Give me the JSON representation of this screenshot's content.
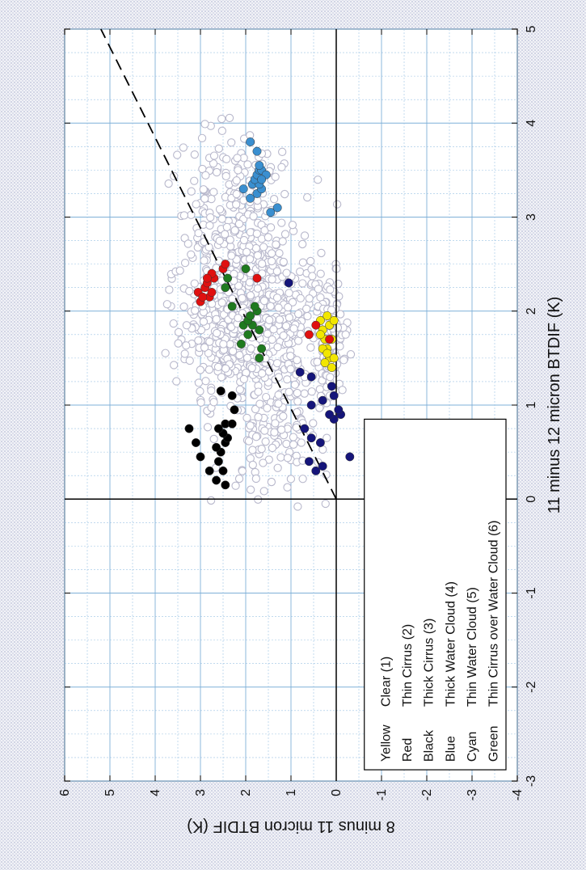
{
  "chart_data": {
    "type": "scatter",
    "orientation": "rotated-90-ccw",
    "xlabel": "11 minus 12 micron BTDIF (K)",
    "ylabel": "8 minus 11 micron BTDIF (K)",
    "xlim": [
      -3,
      5
    ],
    "ylim": [
      -4,
      6
    ],
    "x_ticks": [
      "-3",
      "-2",
      "-1",
      "0",
      "1",
      "2",
      "3",
      "4",
      "5"
    ],
    "y_ticks": [
      "-4",
      "-3",
      "-2",
      "-1",
      "0",
      "1",
      "2",
      "3",
      "4",
      "5",
      "6"
    ],
    "grid": true,
    "reference_line": {
      "style": "dashed",
      "from": [
        0,
        0
      ],
      "to": [
        5,
        5.2
      ]
    },
    "zero_lines": {
      "x": 0,
      "y": 0
    },
    "legend": {
      "placement": "lower-left",
      "entries": [
        {
          "color_name": "Yellow",
          "label": "Clear (1)",
          "color": "#f2e600"
        },
        {
          "color_name": "Red",
          "label": "Thin Cirrus (2)",
          "color": "#e01010"
        },
        {
          "color_name": "Black",
          "label": "Thick Cirrus (3)",
          "color": "#000000"
        },
        {
          "color_name": "Blue",
          "label": "Thick Water Cloud (4)",
          "color": "#15157a"
        },
        {
          "color_name": "Cyan",
          "label": "Thin Water Cloud (5)",
          "color": "#3a8fd0"
        },
        {
          "color_name": "Green",
          "label": "Thin Cirrus over Water Cloud (6)",
          "color": "#1f7a1f"
        }
      ]
    },
    "unclassified_cloud": {
      "color": "#b8b8cc",
      "style": "open-circle",
      "clusters": [
        {
          "cx": 1.9,
          "cy": 1.9,
          "sx": 0.55,
          "sy": 0.75,
          "n": 700
        },
        {
          "cx": 3.1,
          "cy": 2.3,
          "sx": 0.4,
          "sy": 0.6,
          "n": 170
        },
        {
          "cx": 1.7,
          "cy": 0.15,
          "sx": 0.35,
          "sy": 0.15,
          "n": 140
        },
        {
          "cx": 0.7,
          "cy": 1.1,
          "sx": 0.35,
          "sy": 0.5,
          "n": 90
        }
      ]
    },
    "series": [
      {
        "name": "Yellow",
        "color": "#f2e600",
        "points": [
          [
            1.4,
            0.1
          ],
          [
            1.5,
            0.15
          ],
          [
            1.6,
            0.2
          ],
          [
            1.7,
            0.25
          ],
          [
            1.8,
            0.3
          ],
          [
            1.9,
            0.35
          ],
          [
            1.5,
            0.05
          ],
          [
            1.7,
            0.1
          ],
          [
            1.85,
            0.15
          ],
          [
            1.95,
            0.2
          ],
          [
            1.6,
            0.3
          ],
          [
            1.45,
            0.25
          ],
          [
            1.75,
            0.35
          ],
          [
            1.9,
            0.05
          ],
          [
            1.55,
            0.2
          ]
        ]
      },
      {
        "name": "Red",
        "color": "#e01010",
        "points": [
          [
            2.1,
            3.0
          ],
          [
            2.15,
            2.8
          ],
          [
            2.2,
            3.05
          ],
          [
            2.25,
            2.9
          ],
          [
            2.3,
            2.85
          ],
          [
            2.15,
            2.95
          ],
          [
            2.2,
            2.75
          ],
          [
            2.35,
            2.7
          ],
          [
            2.4,
            2.75
          ],
          [
            2.35,
            2.85
          ],
          [
            2.45,
            2.5
          ],
          [
            2.5,
            2.45
          ],
          [
            2.35,
            1.75
          ],
          [
            1.85,
            0.45
          ],
          [
            1.75,
            0.6
          ],
          [
            1.7,
            0.15
          ]
        ]
      },
      {
        "name": "Black",
        "color": "#000000",
        "points": [
          [
            0.15,
            2.45
          ],
          [
            0.2,
            2.65
          ],
          [
            0.3,
            2.5
          ],
          [
            0.4,
            2.6
          ],
          [
            0.5,
            2.55
          ],
          [
            0.6,
            2.45
          ],
          [
            0.55,
            2.65
          ],
          [
            0.65,
            2.4
          ],
          [
            0.7,
            2.5
          ],
          [
            0.75,
            2.6
          ],
          [
            0.8,
            2.45
          ],
          [
            0.8,
            2.3
          ],
          [
            0.3,
            2.8
          ],
          [
            0.45,
            3.0
          ],
          [
            0.6,
            3.1
          ],
          [
            0.75,
            3.25
          ],
          [
            0.95,
            2.25
          ],
          [
            1.1,
            2.3
          ],
          [
            1.15,
            2.55
          ]
        ]
      },
      {
        "name": "Blue",
        "color": "#15157a",
        "points": [
          [
            0.3,
            0.45
          ],
          [
            0.35,
            0.3
          ],
          [
            0.4,
            0.6
          ],
          [
            0.45,
            -0.3
          ],
          [
            0.6,
            0.35
          ],
          [
            0.65,
            0.55
          ],
          [
            0.75,
            0.7
          ],
          [
            0.85,
            0.05
          ],
          [
            0.9,
            0.15
          ],
          [
            0.9,
            -0.1
          ],
          [
            0.95,
            -0.05
          ],
          [
            1.0,
            0.55
          ],
          [
            1.05,
            0.3
          ],
          [
            1.2,
            0.1
          ],
          [
            1.3,
            0.55
          ],
          [
            1.35,
            0.8
          ],
          [
            1.1,
            0.05
          ],
          [
            2.3,
            1.05
          ]
        ]
      },
      {
        "name": "Cyan",
        "color": "#3a8fd0",
        "points": [
          [
            3.05,
            1.45
          ],
          [
            3.1,
            1.3
          ],
          [
            3.2,
            1.9
          ],
          [
            3.25,
            1.75
          ],
          [
            3.3,
            1.65
          ],
          [
            3.3,
            2.05
          ],
          [
            3.35,
            1.85
          ],
          [
            3.35,
            1.7
          ],
          [
            3.4,
            1.8
          ],
          [
            3.45,
            1.75
          ],
          [
            3.5,
            1.7
          ],
          [
            3.5,
            1.65
          ],
          [
            3.45,
            1.55
          ],
          [
            3.55,
            1.7
          ],
          [
            3.4,
            1.65
          ],
          [
            3.7,
            1.75
          ],
          [
            3.8,
            1.9
          ]
        ]
      },
      {
        "name": "Green",
        "color": "#1f7a1f",
        "points": [
          [
            1.5,
            1.7
          ],
          [
            1.6,
            1.65
          ],
          [
            1.65,
            2.1
          ],
          [
            1.75,
            1.95
          ],
          [
            1.8,
            1.7
          ],
          [
            1.85,
            1.85
          ],
          [
            1.85,
            2.05
          ],
          [
            1.9,
            1.95
          ],
          [
            1.95,
            1.9
          ],
          [
            2.0,
            1.75
          ],
          [
            2.05,
            1.8
          ],
          [
            2.05,
            2.3
          ],
          [
            2.25,
            2.45
          ],
          [
            2.35,
            2.4
          ],
          [
            2.45,
            2.0
          ]
        ]
      }
    ]
  }
}
